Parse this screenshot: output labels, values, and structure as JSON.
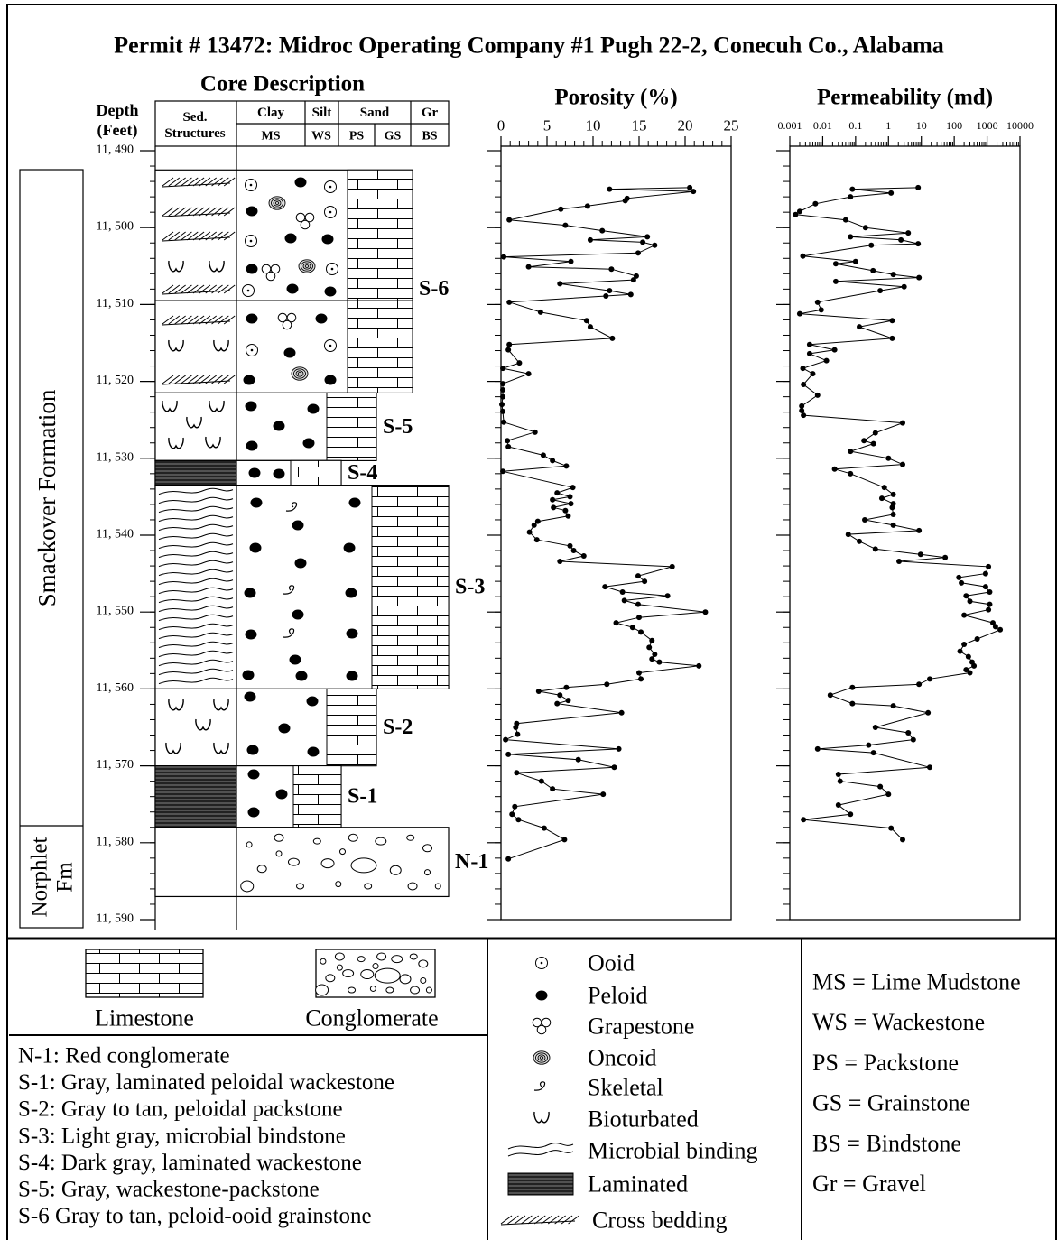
{
  "title": "Permit # 13472: Midroc Operating Company #1 Pugh 22-2, Conecuh Co., Alabama",
  "core": {
    "title": "Core Description",
    "depth_label": [
      "Depth",
      "(Feet)"
    ],
    "sed_label": [
      "Sed.",
      "Structures"
    ],
    "grain_header": [
      {
        "name": "Clay",
        "codes": [
          "MS"
        ]
      },
      {
        "name": "Silt",
        "codes": [
          "WS"
        ]
      },
      {
        "name": "Sand",
        "codes": [
          "PS",
          "GS"
        ]
      },
      {
        "name": "Gr",
        "codes": [
          "BS"
        ]
      }
    ],
    "depth_lim": [
      11490,
      11590
    ],
    "depth_ticks": [
      {
        "value": 11490,
        "label": "11, 490"
      },
      {
        "value": 11500,
        "label": "11, 500"
      },
      {
        "value": 11510,
        "label": "11, 510"
      },
      {
        "value": 11520,
        "label": "11, 520"
      },
      {
        "value": 11530,
        "label": "11, 530"
      },
      {
        "value": 11540,
        "label": "11, 540"
      },
      {
        "value": 11550,
        "label": "11, 550"
      },
      {
        "value": 11560,
        "label": "11, 560"
      },
      {
        "value": 11570,
        "label": "11, 570"
      },
      {
        "value": 11580,
        "label": "11, 580"
      },
      {
        "value": 11590,
        "label": "11, 590"
      }
    ],
    "formations": [
      "Smackover Formation",
      [
        "Norphlet",
        "Fm"
      ]
    ],
    "units": [
      {
        "label": "S-6",
        "top": 11492.5,
        "base": 11509.5
      },
      {
        "label": null,
        "top": 11509.5,
        "base": 11521.5
      },
      {
        "label": "S-5",
        "top": 11521.5,
        "base": 11530.3
      },
      {
        "label": "S-4",
        "top": 11530.3,
        "base": 11533.5
      },
      {
        "label": "S-3",
        "top": 11533.5,
        "base": 11560
      },
      {
        "label": "S-2",
        "top": 11560,
        "base": 11570
      },
      {
        "label": "S-1",
        "top": 11570,
        "base": 11578
      },
      {
        "label": "N-1",
        "top": 11578,
        "base": 11587
      }
    ]
  },
  "chart_data": [
    {
      "type": "line",
      "title": "Porosity (%)",
      "xlim": [
        0,
        25
      ],
      "xticks": [
        0,
        5,
        10,
        15,
        20,
        25
      ],
      "color": "#000000",
      "depths": [
        11494.8,
        11495.0,
        11495.3,
        11496.2,
        11496.5,
        11497.2,
        11497.6,
        11499.0,
        11499.7,
        11500.4,
        11501.2,
        11501.6,
        11501.9,
        11502.3,
        11503.3,
        11503.8,
        11504.4,
        11505.1,
        11505.4,
        11506.3,
        11506.8,
        11507.3,
        11508.2,
        11508.7,
        11508.9,
        11509.7,
        11511.0,
        11512.1,
        11512.9,
        11514.4,
        11515.2,
        11515.9,
        11517.6,
        11518.3,
        11519.0,
        11520.3,
        11521.1,
        11522.0,
        11523.0,
        11523.9,
        11525.3,
        11526.6,
        11527.7,
        11528.5,
        11529.6,
        11530.3,
        11531.0,
        11531.7,
        11533.8,
        11534.5,
        11535.0,
        11535.4,
        11535.9,
        11536.4,
        11536.8,
        11537.5,
        11538.2,
        11538.7,
        11539.6,
        11540.6,
        11541.4,
        11542.0,
        11542.7,
        11543.4,
        11544.1,
        11545.3,
        11546.0,
        11546.7,
        11547.4,
        11547.9,
        11548.5,
        11549.0,
        11550.0,
        11550.7,
        11551.4,
        11552.0,
        11552.6,
        11553.7,
        11554.6,
        11555.5,
        11556.1,
        11556.5,
        11557.0,
        11557.9,
        11558.7,
        11559.4,
        11559.8,
        11560.3,
        11560.8,
        11561.5,
        11561.9,
        11563.1,
        11564.5,
        11565.0,
        11565.9,
        11566.6,
        11567.8,
        11568.5,
        11569.2,
        11570.2,
        11570.9,
        11572.0,
        11573.0,
        11573.7,
        11575.3,
        11576.3,
        11577.0,
        11578.1,
        11579.6,
        11582.1
      ],
      "values": [
        20.5,
        11.8,
        20.9,
        13.7,
        13.5,
        9.4,
        6.5,
        0.9,
        7,
        11,
        15.9,
        9.7,
        15.4,
        16.7,
        14.9,
        0.3,
        7.6,
        3,
        12,
        14.7,
        14.4,
        6.4,
        11.8,
        14.1,
        11.4,
        0.9,
        4.3,
        9.3,
        9.7,
        12.1,
        0.9,
        0.8,
        2,
        0.2,
        3,
        0.2,
        0.2,
        0.2,
        0.1,
        0.2,
        0.3,
        3.7,
        0.7,
        0.8,
        4.6,
        5.6,
        7.1,
        0.2,
        7.8,
        6.1,
        7.5,
        5.6,
        7.6,
        5.7,
        7,
        7.3,
        4,
        3.6,
        3.1,
        3.9,
        7.5,
        7.9,
        9,
        6.4,
        18.6,
        14.9,
        15.6,
        11.3,
        13.2,
        18.1,
        13.4,
        14.9,
        22.2,
        15,
        12.5,
        14.3,
        15.2,
        16.4,
        16.1,
        16.7,
        16.4,
        17.2,
        21.5,
        15,
        15.2,
        11.5,
        7.1,
        4.1,
        6.4,
        7.3,
        6.1,
        13.1,
        1.7,
        1.6,
        1.8,
        0.5,
        12.8,
        0.8,
        8.4,
        12.3,
        1.7,
        4.4,
        5.6,
        11.1,
        1.5,
        1.2,
        1.9,
        4.7,
        6.9,
        0.8
      ]
    },
    {
      "type": "line",
      "title": "Permeability (md)",
      "xscale": "log",
      "xlim": [
        0.001,
        10000
      ],
      "xticks": [
        0.001,
        0.01,
        0.1,
        1,
        10,
        100,
        1000,
        10000
      ],
      "color": "#000000",
      "depths": [
        11494.8,
        11495.0,
        11495.5,
        11496.0,
        11496.9,
        11497.9,
        11498.3,
        11499.0,
        11500.0,
        11500.7,
        11501.2,
        11501.6,
        11502.1,
        11502.3,
        11503.7,
        11504.4,
        11504.7,
        11505.6,
        11506.1,
        11506.5,
        11507.0,
        11507.7,
        11508.2,
        11509.7,
        11510.7,
        11511.2,
        11512.1,
        11512.9,
        11514.4,
        11515.2,
        11515.9,
        11516.4,
        11517.3,
        11518.3,
        11519.0,
        11520.4,
        11521.8,
        11523.2,
        11523.8,
        11524.4,
        11525.4,
        11526.7,
        11527.7,
        11528.1,
        11529.1,
        11530.0,
        11530.8,
        11531.4,
        11532.0,
        11533.8,
        11534.7,
        11535.2,
        11535.9,
        11536.4,
        11537.3,
        11538.0,
        11538.7,
        11539.4,
        11539.9,
        11540.8,
        11541.8,
        11542.5,
        11542.9,
        11543.4,
        11544.1,
        11545.0,
        11545.5,
        11546.2,
        11546.7,
        11547.4,
        11547.9,
        11548.6,
        11549.0,
        11549.7,
        11550.4,
        11551.4,
        11551.9,
        11552.3,
        11553.5,
        11554.2,
        11555.1,
        11555.8,
        11556.5,
        11557.0,
        11557.5,
        11557.9,
        11558.7,
        11559.4,
        11559.8,
        11560.8,
        11561.9,
        11562.2,
        11563.1,
        11565.0,
        11565.7,
        11566.6,
        11567.3,
        11567.8,
        11568.3,
        11570.2,
        11571.1,
        11572.0,
        11572.7,
        11573.7,
        11575.1,
        11576.3,
        11577.0,
        11578.1,
        11579.6
      ],
      "values": [
        8,
        0.08,
        1.2,
        0.07,
        0.006,
        0.002,
        0.0015,
        0.05,
        0.2,
        4,
        0.07,
        2.4,
        8,
        0.3,
        0.0025,
        0.1,
        0.025,
        0.34,
        1.4,
        8.5,
        0.025,
        3,
        0.56,
        0.007,
        0.009,
        0.002,
        1.3,
        0.13,
        1.3,
        0.004,
        0.023,
        0.004,
        0.013,
        0.0025,
        0.005,
        0.0026,
        0.007,
        0.0023,
        0.0023,
        0.0026,
        2.7,
        0.4,
        0.18,
        0.35,
        0.07,
        1,
        2.7,
        0.023,
        0.07,
        0.75,
        1.4,
        0.63,
        1.4,
        1.3,
        1.4,
        0.19,
        1.4,
        8.5,
        0.06,
        0.13,
        0.4,
        9.5,
        53,
        2.1,
        1100,
        900,
        138,
        165,
        900,
        1200,
        230,
        300,
        1200,
        1100,
        200,
        1500,
        1800,
        2500,
        500,
        200,
        150,
        270,
        350,
        400,
        230,
        300,
        18,
        8.5,
        0.08,
        0.017,
        0.08,
        1.4,
        16,
        0.4,
        4,
        5.7,
        0.25,
        0.007,
        0.35,
        18,
        0.03,
        0.034,
        0.56,
        1,
        0.03,
        0.07,
        0.0026,
        1.2,
        2.7
      ]
    }
  ],
  "legend": {
    "lithology": [
      "Limestone",
      "Conglomerate"
    ],
    "units": [
      "N-1: Red conglomerate",
      "S-1: Gray, laminated peloidal wackestone",
      "S-2: Gray to tan, peloidal packstone",
      "S-3: Light gray, microbial bindstone",
      "S-4: Dark gray, laminated wackestone",
      "S-5: Gray, wackestone-packstone",
      "S-6 Gray to tan, peloid-ooid grainstone"
    ],
    "symbols": [
      "Ooid",
      "Peloid",
      "Grapestone",
      "Oncoid",
      "Skeletal",
      "Bioturbated",
      "Microbial binding",
      "Laminated",
      "Cross bedding"
    ],
    "abbreviations": [
      "MS = Lime Mudstone",
      "WS = Wackestone",
      "PS = Packstone",
      "GS = Grainstone",
      "BS = Bindstone",
      "Gr = Gravel"
    ]
  }
}
